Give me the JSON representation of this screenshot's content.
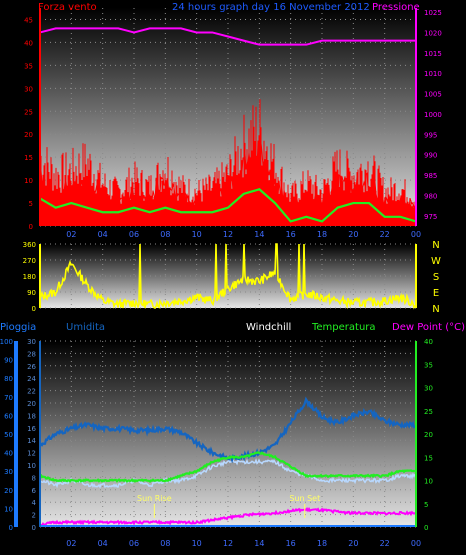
{
  "title": "24 hours graph day   16 November 2012",
  "colors": {
    "wind": "#ff0000",
    "gust": "#ff0000",
    "windAvg": "#22ee22",
    "pressure": "#ff00ff",
    "direction": "#ffff00",
    "rain": "#1e7bff",
    "humidity": "#1565c0",
    "windchill": "#ffffff",
    "temperature": "#22ee22",
    "dewpoint": "#ff00ff",
    "axisLeftTop": "#ff0000",
    "axisRightTop": "#ff00ff",
    "axisLeftBottom": "#1e7bff",
    "axisRightBottom": "#22ee22"
  },
  "chart_data": [
    {
      "type": "line",
      "name": "wind-pressure",
      "labels": {
        "left": "Forza vento",
        "right": "Pressione"
      },
      "x_ticks": [
        "02",
        "04",
        "06",
        "08",
        "10",
        "12",
        "14",
        "16",
        "18",
        "20",
        "22",
        "00"
      ],
      "y_left_ticks": [
        0,
        5,
        10,
        15,
        20,
        25,
        30,
        35,
        40,
        45
      ],
      "y_right_ticks": [
        975,
        980,
        985,
        990,
        995,
        1000,
        1005,
        1010,
        1015,
        1020,
        1025
      ],
      "ylim_left": [
        0,
        47.5
      ],
      "ylim_right": [
        972.5,
        1026
      ],
      "x": [
        0,
        1,
        2,
        3,
        4,
        5,
        6,
        7,
        8,
        9,
        10,
        11,
        12,
        13,
        14,
        15,
        16,
        17,
        18,
        19,
        20,
        21,
        22,
        23,
        24
      ],
      "series": [
        {
          "key": "gust",
          "axis": "left",
          "values": [
            16,
            12,
            13,
            15,
            10,
            8,
            11,
            9,
            14,
            9,
            8,
            9,
            12,
            19,
            23,
            14,
            7,
            10,
            8,
            14,
            12,
            14,
            8,
            9,
            6
          ]
        },
        {
          "key": "wind",
          "axis": "left",
          "values": [
            10,
            7,
            8,
            9,
            6,
            5,
            7,
            6,
            9,
            6,
            5,
            6,
            8,
            12,
            15,
            9,
            4,
            6,
            5,
            9,
            8,
            9,
            5,
            6,
            4
          ]
        },
        {
          "key": "windAvg",
          "axis": "left",
          "values": [
            6,
            4,
            5,
            4,
            3,
            3,
            4,
            3,
            4,
            3,
            3,
            3,
            4,
            7,
            8,
            5,
            1,
            2,
            1,
            4,
            5,
            5,
            2,
            2,
            1
          ]
        },
        {
          "key": "pressure",
          "axis": "right",
          "values": [
            1020,
            1021,
            1021,
            1021,
            1021,
            1021,
            1020,
            1021,
            1021,
            1021,
            1020,
            1020,
            1019,
            1018,
            1017,
            1017,
            1017,
            1017,
            1018,
            1018,
            1018,
            1018,
            1018,
            1018,
            1018
          ]
        }
      ]
    },
    {
      "type": "line",
      "name": "wind-direction",
      "y_left_ticks": [
        0,
        90,
        180,
        270,
        360
      ],
      "compass": [
        "N",
        "W",
        "S",
        "E",
        "N"
      ],
      "ylim": [
        0,
        360
      ],
      "x": [
        0,
        1,
        2,
        3,
        4,
        5,
        6,
        7,
        8,
        9,
        10,
        11,
        12,
        13,
        14,
        15,
        16,
        17,
        18,
        19,
        20,
        21,
        22,
        23,
        24
      ],
      "series": [
        {
          "key": "direction",
          "values": [
            60,
            90,
            250,
            130,
            40,
            20,
            30,
            20,
            30,
            40,
            60,
            40,
            110,
            160,
            150,
            200,
            50,
            80,
            60,
            40,
            30,
            30,
            40,
            60,
            20
          ]
        }
      ]
    },
    {
      "type": "line",
      "name": "temperature-humidity",
      "labels": {
        "left": "Pioggia",
        "umidita": "Umidita",
        "windchill": "Windchill",
        "temperature": "Temperatura",
        "dewpoint": "Dew Point (°C)"
      },
      "x_ticks": [
        "02",
        "04",
        "06",
        "08",
        "10",
        "12",
        "14",
        "16",
        "18",
        "20",
        "22",
        "00"
      ],
      "y_left_ticks": [
        0,
        10,
        20,
        30,
        40,
        50,
        60,
        70,
        80,
        90,
        100
      ],
      "y_mid_ticks": [
        0,
        2,
        4,
        6,
        8,
        10,
        12,
        14,
        16,
        18,
        20,
        22,
        24,
        26,
        28,
        30
      ],
      "y_right_ticks": [
        0,
        5,
        10,
        15,
        20,
        25,
        30,
        35,
        40
      ],
      "ylim_left": [
        0,
        100
      ],
      "ylim_right": [
        0,
        40
      ],
      "annotations": [
        {
          "text": "Sun Rise",
          "x": 7.3
        },
        {
          "text": "Sun Set",
          "x": 16.9
        }
      ],
      "x": [
        0,
        1,
        2,
        3,
        4,
        5,
        6,
        7,
        8,
        9,
        10,
        11,
        12,
        13,
        14,
        15,
        16,
        17,
        18,
        19,
        20,
        21,
        22,
        23,
        24
      ],
      "series": [
        {
          "key": "humidity",
          "axis": "left",
          "values": [
            44,
            50,
            53,
            55,
            53,
            53,
            52,
            52,
            53,
            51,
            45,
            40,
            37,
            38,
            40,
            44,
            56,
            68,
            59,
            56,
            60,
            62,
            57,
            55,
            55
          ]
        },
        {
          "key": "temperature",
          "axis": "right",
          "values": [
            11,
            10,
            10,
            10,
            10,
            10,
            10,
            10,
            10,
            11,
            12,
            14,
            15,
            15,
            16,
            15,
            13,
            11,
            11,
            11,
            11,
            11,
            11,
            12,
            12
          ]
        },
        {
          "key": "windchill",
          "axis": "right",
          "values": [
            10,
            9,
            10,
            9,
            9,
            9,
            10,
            9,
            10,
            10,
            11,
            13,
            14,
            14,
            14,
            14,
            12,
            11,
            10,
            10,
            10,
            10,
            10,
            11,
            11
          ]
        },
        {
          "key": "dewpoint",
          "axis": "right",
          "values": [
            0.5,
            1,
            1,
            1,
            1,
            1,
            1,
            1,
            1,
            1,
            1,
            1.5,
            2,
            2.5,
            2.8,
            3,
            3.5,
            3.7,
            3.6,
            3.3,
            3,
            3,
            2.9,
            3,
            3
          ]
        },
        {
          "key": "rain",
          "axis": "left",
          "values": [
            0,
            0,
            0,
            0,
            0,
            0,
            0,
            0,
            0,
            0,
            0,
            0,
            0,
            0,
            0,
            0,
            0,
            0,
            0,
            0,
            0,
            0,
            0,
            0,
            0
          ]
        }
      ]
    }
  ]
}
